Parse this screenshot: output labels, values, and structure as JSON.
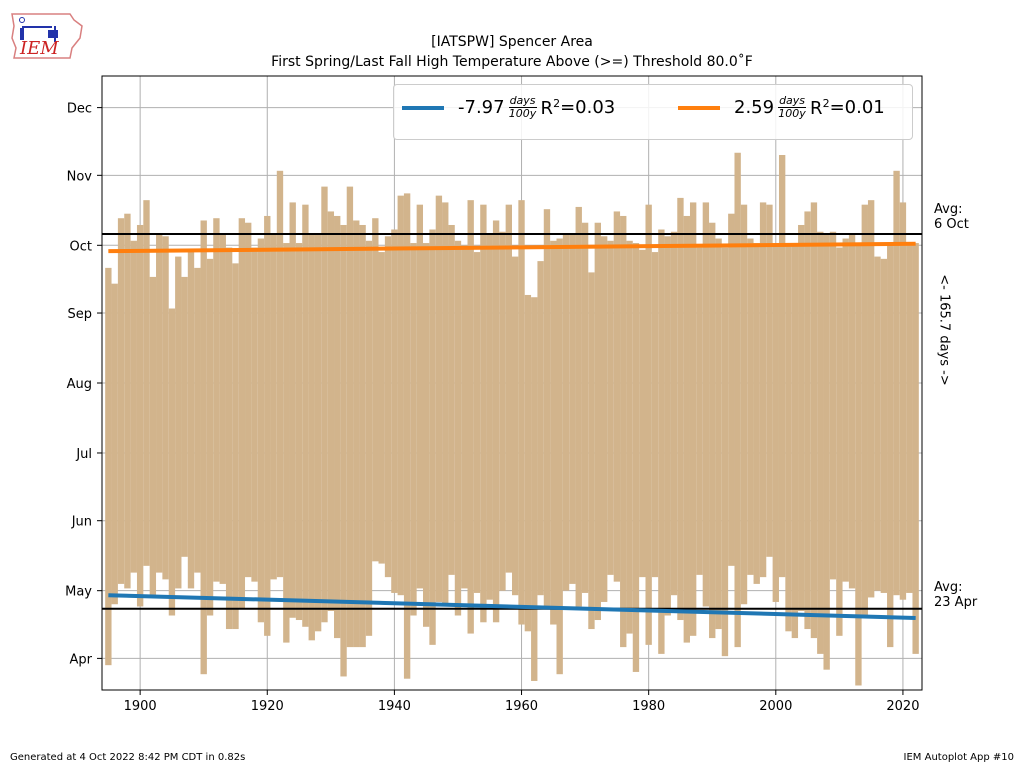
{
  "header": {
    "title_line1": "[IATSPW] Spencer Area",
    "title_line2": "First Spring/Last Fall High Temperature Above (>=) Threshold 80.0˚F"
  },
  "logo": {
    "text": "IEM"
  },
  "footer": {
    "generated": "Generated at 4 Oct 2022 8:42 PM CDT in 0.82s",
    "app": "IEM Autoplot App #10"
  },
  "annotations": {
    "avg_fall_line1": "Avg:",
    "avg_fall_line2": "6 Oct",
    "avg_spring_line1": "Avg:",
    "avg_spring_line2": "23 Apr",
    "span": "<- 165.7 days ->"
  },
  "legend": {
    "spring": {
      "value": "-7.97",
      "unit_num": "days",
      "unit_den": "100y",
      "r2": "=0.03",
      "color": "#1f77b4"
    },
    "fall": {
      "value": "2.59",
      "unit_num": "days",
      "unit_den": "100y",
      "r2": "=0.01",
      "color": "#ff7f0e"
    }
  },
  "chart_data": {
    "type": "bar",
    "x_start": 1895,
    "x_end": 2022,
    "xlim": [
      1894,
      2023
    ],
    "ylim": [
      77,
      349
    ],
    "x_ticks": [
      1900,
      1920,
      1940,
      1960,
      1980,
      2000,
      2020
    ],
    "y_ticks": [
      {
        "label": "Apr",
        "doy": 91
      },
      {
        "label": "May",
        "doy": 121
      },
      {
        "label": "Jun",
        "doy": 152
      },
      {
        "label": "Jul",
        "doy": 182
      },
      {
        "label": "Aug",
        "doy": 213
      },
      {
        "label": "Sep",
        "doy": 244
      },
      {
        "label": "Oct",
        "doy": 274
      },
      {
        "label": "Nov",
        "doy": 305
      },
      {
        "label": "Dec",
        "doy": 335
      }
    ],
    "first_spring_doy": [
      88,
      115,
      124,
      122,
      129,
      114,
      132,
      118,
      129,
      126,
      110,
      122,
      136,
      122,
      129,
      84,
      110,
      125,
      124,
      104,
      104,
      113,
      127,
      125,
      107,
      101,
      126,
      127,
      98,
      109,
      108,
      105,
      99,
      103,
      107,
      112,
      100,
      83,
      96,
      96,
      96,
      101,
      134,
      133,
      127,
      120,
      119,
      82,
      110,
      122,
      105,
      97,
      116,
      114,
      128,
      110,
      122,
      102,
      120,
      107,
      117,
      107,
      121,
      129,
      119,
      106,
      103,
      81,
      119,
      113,
      106,
      84,
      121,
      124,
      114,
      120,
      104,
      108,
      116,
      128,
      125,
      96,
      102,
      85,
      127,
      97,
      127,
      93,
      110,
      119,
      108,
      98,
      101,
      128,
      114,
      100,
      104,
      92,
      132,
      96,
      115,
      128,
      124,
      127,
      136,
      116,
      127,
      103,
      100,
      112,
      104,
      100,
      93,
      86,
      126,
      101,
      125,
      122,
      79,
      110,
      118,
      121,
      120,
      96,
      119,
      117,
      120,
      93
    ],
    "last_fall_doy": [
      264,
      257,
      286,
      288,
      276,
      283,
      294,
      260,
      279,
      278,
      246,
      269,
      260,
      272,
      264,
      285,
      268,
      286,
      279,
      273,
      266,
      286,
      284,
      273,
      277,
      287,
      279,
      307,
      275,
      293,
      275,
      292,
      279,
      279,
      300,
      289,
      287,
      283,
      300,
      285,
      283,
      276,
      286,
      271,
      278,
      281,
      296,
      297,
      275,
      292,
      275,
      281,
      296,
      293,
      283,
      276,
      274,
      294,
      271,
      292,
      279,
      285,
      280,
      292,
      269,
      294,
      252,
      251,
      267,
      290,
      276,
      277,
      279,
      279,
      291,
      284,
      262,
      284,
      278,
      276,
      289,
      287,
      276,
      275,
      272,
      292,
      271,
      281,
      278,
      280,
      295,
      287,
      293,
      273,
      293,
      284,
      277,
      273,
      288,
      315,
      292,
      277,
      275,
      293,
      292,
      274,
      314,
      274,
      275,
      283,
      289,
      293,
      280,
      279,
      280,
      273,
      277,
      279,
      275,
      292,
      294,
      269,
      268,
      274,
      307,
      293,
      275,
      275
    ],
    "trend_spring": {
      "y1895": 119.0,
      "y2022": 108.9
    },
    "trend_fall": {
      "y1895": 271.4,
      "y2022": 274.7
    },
    "avg_spring_doy": 113,
    "avg_fall_doy": 279,
    "bar_color": "#d2b48c"
  }
}
